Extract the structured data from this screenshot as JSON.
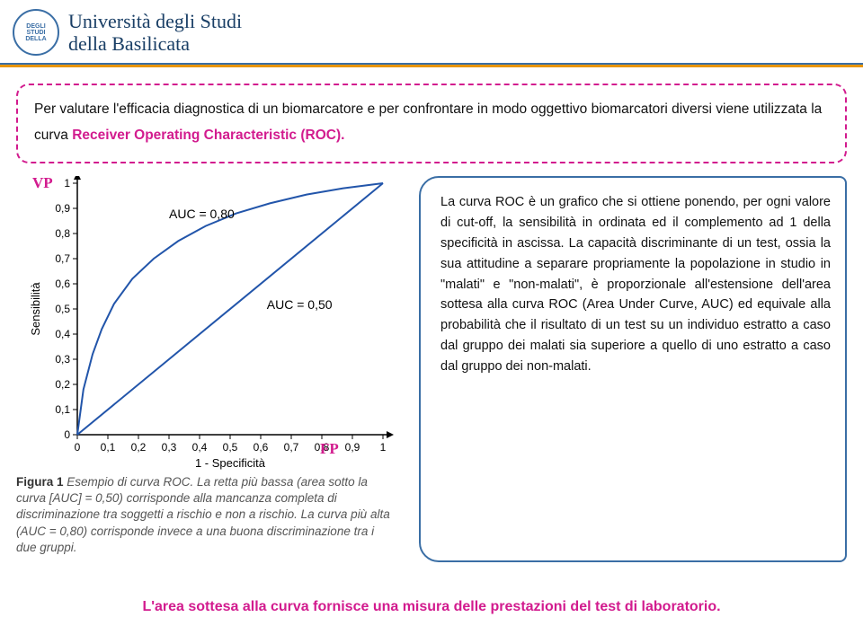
{
  "header": {
    "logo_text": "DEGLI STUDI DELLA",
    "uni_line1": "Università degli Studi",
    "uni_line2": "della Basilicata",
    "border_color": "#3a6ea5",
    "accent_color": "#e8950c"
  },
  "intro": {
    "text_prefix": "Per valutare l'efficacia diagnostica di un biomarcatore e per confrontare in modo oggettivo biomarcatori diversi viene utilizzata la curva ",
    "link_text": "Receiver Operating Characteristic (ROC).",
    "border_color": "#d21b8e"
  },
  "chart": {
    "vp_label": "VP",
    "fp_label": "FP",
    "y_title": "Sensibilità",
    "x_title": "1 - Specificità",
    "auc_high_label": "AUC = 0,80",
    "auc_low_label": "AUC = 0,50",
    "x_ticks": [
      "0",
      "0,1",
      "0,2",
      "0,3",
      "0,4",
      "0,5",
      "0,6",
      "0,7",
      "0,8",
      "0,9",
      "1"
    ],
    "y_ticks": [
      "0",
      "0,1",
      "0,2",
      "0,3",
      "0,4",
      "0,5",
      "0,6",
      "0,7",
      "0,8",
      "0,9",
      "1"
    ],
    "xlim": [
      0,
      1
    ],
    "ylim": [
      0,
      1
    ],
    "diag_color": "#2255aa",
    "curve_color": "#2255aa",
    "axis_color": "#000000",
    "line_width": 2,
    "roc_curve": [
      [
        0.0,
        0.0
      ],
      [
        0.02,
        0.18
      ],
      [
        0.05,
        0.32
      ],
      [
        0.08,
        0.42
      ],
      [
        0.12,
        0.52
      ],
      [
        0.18,
        0.62
      ],
      [
        0.25,
        0.7
      ],
      [
        0.33,
        0.77
      ],
      [
        0.42,
        0.83
      ],
      [
        0.52,
        0.88
      ],
      [
        0.63,
        0.92
      ],
      [
        0.75,
        0.955
      ],
      [
        0.87,
        0.98
      ],
      [
        1.0,
        1.0
      ]
    ],
    "caption_bold": "Figura 1",
    "caption_text": " Esempio di curva ROC. La retta più bassa (area sotto la curva [AUC] = 0,50) corrisponde alla mancanza completa di discriminazione tra soggetti a rischio e non a rischio. La curva più alta (AUC = 0,80) corrisponde invece a una buona discriminazione tra i due gruppi."
  },
  "body": {
    "text": "La curva ROC è un grafico che si ottiene ponendo, per ogni valore di cut-off, la sensibilità in ordinata ed il complemento ad 1 della specificità in ascissa. La capacità discriminante di un test, ossia la sua attitudine a separare propriamente la popolazione in studio in \"malati\" e \"non-malati\", è proporzionale all'estensione dell'area sottesa alla curva ROC (Area Under Curve, AUC) ed equivale alla probabilità che il risultato di un test su un individuo estratto a caso dal gruppo dei malati sia superiore a quello di uno estratto a caso dal gruppo dei non-malati."
  },
  "footer": {
    "text": "L'area sottesa alla curva fornisce una misura delle prestazioni del test di laboratorio.",
    "color": "#d21b8e"
  }
}
